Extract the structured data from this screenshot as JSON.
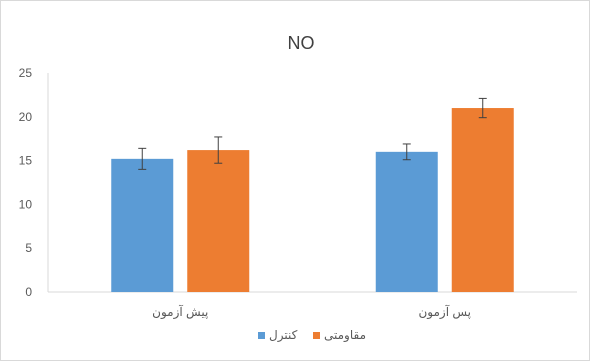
{
  "chart_data": {
    "type": "bar",
    "title": "NO",
    "categories": [
      "پیش آزمون",
      "پس آزمون"
    ],
    "series": [
      {
        "name": "کنترل",
        "color": "#5B9BD5",
        "values": [
          15.2,
          16.0
        ],
        "errors": [
          1.2,
          0.9
        ]
      },
      {
        "name": "مقاومتی",
        "color": "#ED7D31",
        "values": [
          16.2,
          21.0
        ],
        "errors": [
          1.5,
          1.1
        ]
      }
    ],
    "ylim": [
      0,
      25
    ],
    "yticks": [
      0,
      5,
      10,
      15,
      20,
      25
    ],
    "grid": false,
    "legend": "bottom"
  }
}
